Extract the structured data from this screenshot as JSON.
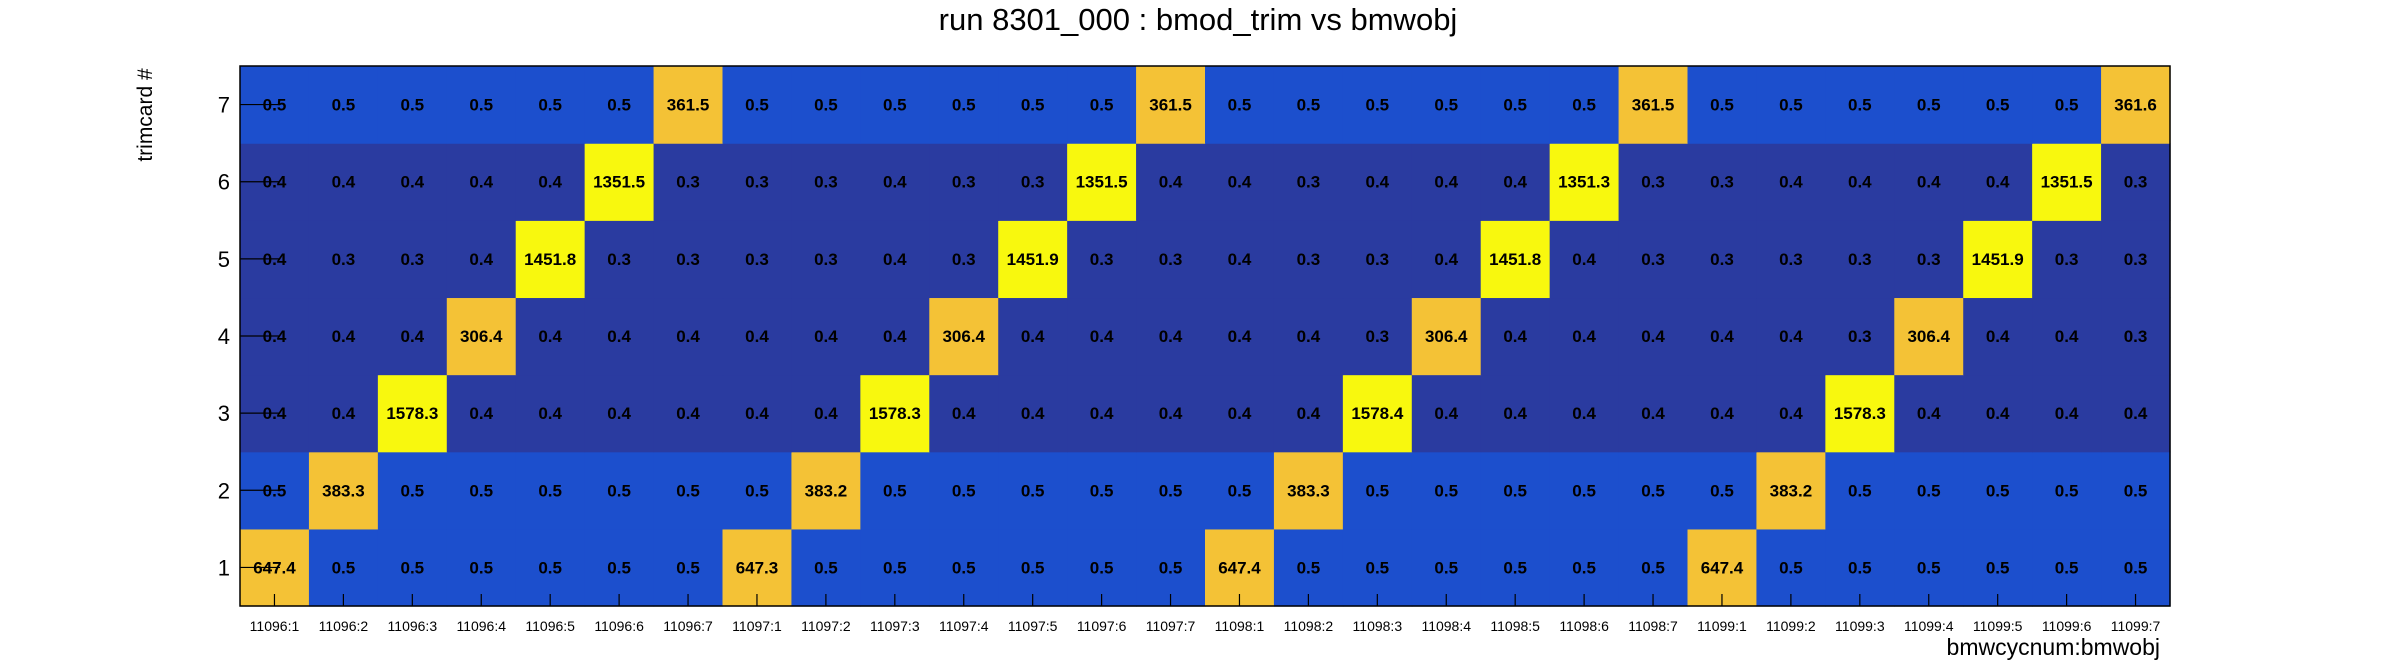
{
  "chart_data": {
    "type": "heatmap",
    "title": "run 8301_000 : bmod_trim vs bmwobj",
    "xlabel": "bmwcycnum:bmwobj",
    "ylabel": "trimcard #",
    "x_categories": [
      "11096:1",
      "11096:2",
      "11096:3",
      "11096:4",
      "11096:5",
      "11096:6",
      "11096:7",
      "11097:1",
      "11097:2",
      "11097:3",
      "11097:4",
      "11097:5",
      "11097:6",
      "11097:7",
      "11098:1",
      "11098:2",
      "11098:3",
      "11098:4",
      "11098:5",
      "11098:6",
      "11098:7",
      "11099:1",
      "11099:2",
      "11099:3",
      "11099:4",
      "11099:5",
      "11099:6",
      "11099:7"
    ],
    "y_categories": [
      "1",
      "2",
      "3",
      "4",
      "5",
      "6",
      "7"
    ],
    "values": [
      [
        647.4,
        0.5,
        0.5,
        0.5,
        0.5,
        0.5,
        0.5,
        647.3,
        0.5,
        0.5,
        0.5,
        0.5,
        0.5,
        0.5,
        647.4,
        0.5,
        0.5,
        0.5,
        0.5,
        0.5,
        0.5,
        647.4,
        0.5,
        0.5,
        0.5,
        0.5,
        0.5,
        0.5
      ],
      [
        0.5,
        383.3,
        0.5,
        0.5,
        0.5,
        0.5,
        0.5,
        0.5,
        383.2,
        0.5,
        0.5,
        0.5,
        0.5,
        0.5,
        0.5,
        383.3,
        0.5,
        0.5,
        0.5,
        0.5,
        0.5,
        0.5,
        383.2,
        0.5,
        0.5,
        0.5,
        0.5,
        0.5
      ],
      [
        0.4,
        0.4,
        1578.3,
        0.4,
        0.4,
        0.4,
        0.4,
        0.4,
        0.4,
        1578.3,
        0.4,
        0.4,
        0.4,
        0.4,
        0.4,
        0.4,
        1578.4,
        0.4,
        0.4,
        0.4,
        0.4,
        0.4,
        0.4,
        1578.3,
        0.4,
        0.4,
        0.4,
        0.4
      ],
      [
        0.4,
        0.4,
        0.4,
        306.4,
        0.4,
        0.4,
        0.4,
        0.4,
        0.4,
        0.4,
        306.4,
        0.4,
        0.4,
        0.4,
        0.4,
        0.4,
        0.3,
        306.4,
        0.4,
        0.4,
        0.4,
        0.4,
        0.4,
        0.3,
        306.4,
        0.4,
        0.4,
        0.3
      ],
      [
        0.4,
        0.3,
        0.3,
        0.4,
        1451.8,
        0.3,
        0.3,
        0.3,
        0.3,
        0.4,
        0.3,
        1451.9,
        0.3,
        0.3,
        0.4,
        0.3,
        0.3,
        0.4,
        1451.8,
        0.4,
        0.3,
        0.3,
        0.3,
        0.3,
        0.3,
        1451.9,
        0.3,
        0.3
      ],
      [
        0.4,
        0.4,
        0.4,
        0.4,
        0.4,
        1351.5,
        0.3,
        0.3,
        0.3,
        0.4,
        0.3,
        0.3,
        1351.5,
        0.4,
        0.4,
        0.3,
        0.4,
        0.4,
        0.4,
        1351.3,
        0.3,
        0.3,
        0.4,
        0.4,
        0.4,
        0.4,
        1351.5,
        0.3
      ],
      [
        0.5,
        0.5,
        0.5,
        0.5,
        0.5,
        0.5,
        361.5,
        0.5,
        0.5,
        0.5,
        0.5,
        0.5,
        0.5,
        361.5,
        0.5,
        0.5,
        0.5,
        0.5,
        0.5,
        0.5,
        361.5,
        0.5,
        0.5,
        0.5,
        0.5,
        0.5,
        0.5,
        361.6
      ]
    ],
    "colors": {
      "very_low": "#2a3ba0",
      "low": "#1c4fcd",
      "mid": "#f4c236",
      "high": "#f8f80e"
    }
  }
}
